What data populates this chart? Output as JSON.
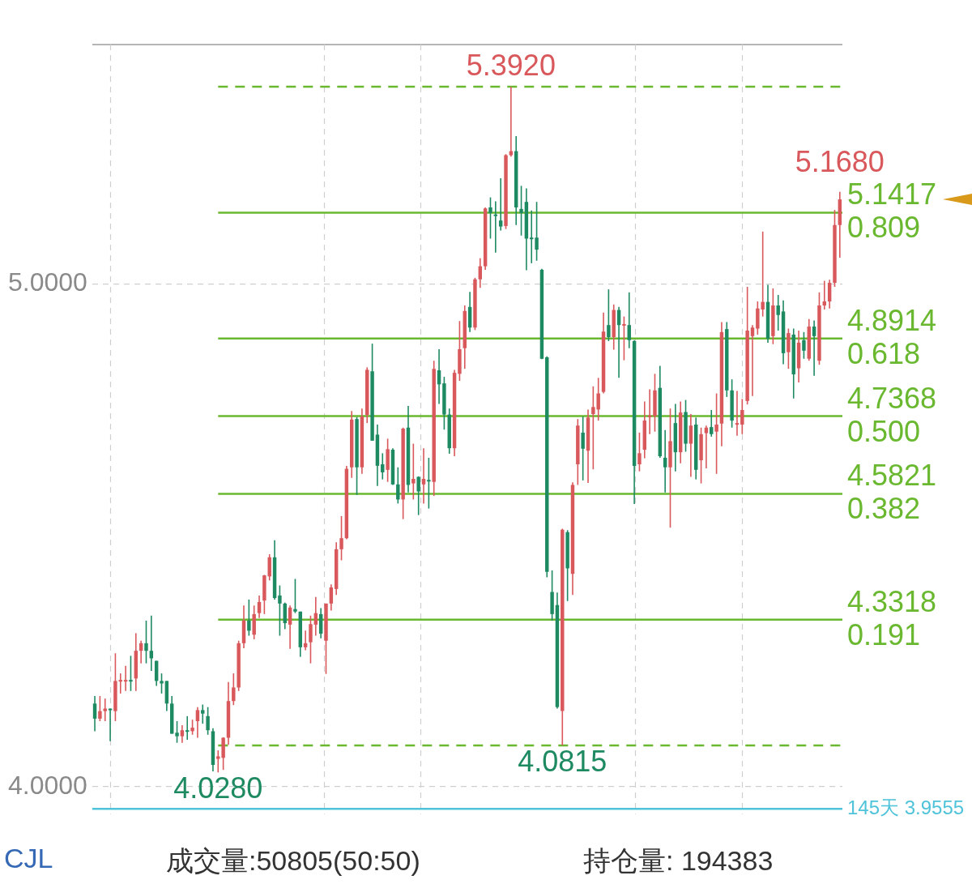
{
  "chart_data": {
    "type": "candlestick",
    "categories": [
      null,
      null,
      null,
      null,
      null,
      null,
      null,
      null,
      null,
      null,
      null,
      null,
      null,
      null,
      null,
      null,
      null,
      null,
      null,
      null,
      null,
      null,
      null,
      null,
      null,
      null,
      null,
      null,
      null,
      null,
      null,
      null,
      null,
      null,
      null,
      null,
      null,
      null,
      null,
      null,
      null,
      null,
      null,
      null,
      null,
      null,
      null,
      null,
      null,
      null,
      null,
      null,
      null,
      null,
      null,
      null,
      null,
      null,
      null,
      null,
      null,
      null,
      null,
      null,
      null,
      null,
      null,
      null,
      null,
      null,
      null,
      null,
      null,
      null,
      null,
      null,
      null,
      null,
      null,
      null,
      null,
      null,
      null,
      null,
      null,
      null,
      null,
      null,
      null,
      null,
      null,
      null,
      null,
      null,
      null,
      null,
      null,
      null,
      null,
      null,
      null,
      null,
      null,
      null,
      null,
      null,
      null,
      null,
      null,
      null,
      null,
      null,
      null,
      null,
      null,
      null,
      null,
      null,
      null,
      null,
      null,
      null,
      null,
      null,
      null,
      null,
      null,
      null,
      null,
      null,
      null,
      null,
      null,
      null,
      null,
      null,
      null,
      null,
      null,
      null,
      null,
      null,
      null,
      null,
      null,
      null
    ],
    "ohlc": [
      [
        4.165,
        4.18,
        4.11,
        4.135
      ],
      [
        4.135,
        4.18,
        4.13,
        4.15
      ],
      [
        4.15,
        4.175,
        4.13,
        4.155
      ],
      [
        4.155,
        4.155,
        4.09,
        4.152
      ],
      [
        4.15,
        4.265,
        4.13,
        4.21
      ],
      [
        4.21,
        4.225,
        4.185,
        4.212
      ],
      [
        4.21,
        4.24,
        4.19,
        4.212
      ],
      [
        4.212,
        4.26,
        4.19,
        4.21
      ],
      [
        4.215,
        4.305,
        4.19,
        4.27
      ],
      [
        4.27,
        4.29,
        4.245,
        4.285
      ],
      [
        4.285,
        4.33,
        4.245,
        4.27
      ],
      [
        4.27,
        4.34,
        4.23,
        4.255
      ],
      [
        4.25,
        4.25,
        4.2,
        4.21
      ],
      [
        4.21,
        4.225,
        4.185,
        4.205
      ],
      [
        4.21,
        4.21,
        4.15,
        4.165
      ],
      [
        4.165,
        4.18,
        4.105,
        4.105
      ],
      [
        4.107,
        4.13,
        4.087,
        4.1
      ],
      [
        4.1,
        4.122,
        4.087,
        4.112
      ],
      [
        4.112,
        4.14,
        4.093,
        4.11
      ],
      [
        4.11,
        4.133,
        4.103,
        4.117
      ],
      [
        4.13,
        4.158,
        4.097,
        4.152
      ],
      [
        4.152,
        4.163,
        4.125,
        4.145
      ],
      [
        4.14,
        4.158,
        4.103,
        4.112
      ],
      [
        4.11,
        4.116,
        4.03,
        4.043
      ],
      [
        4.055,
        4.072,
        4.028,
        4.06
      ],
      [
        4.057,
        4.098,
        4.033,
        4.097
      ],
      [
        4.097,
        4.208,
        4.083,
        4.17
      ],
      [
        4.17,
        4.225,
        4.162,
        4.197
      ],
      [
        4.197,
        4.29,
        4.19,
        4.285
      ],
      [
        4.285,
        4.36,
        4.275,
        4.33
      ],
      [
        4.33,
        4.372,
        4.3,
        4.31
      ],
      [
        4.302,
        4.36,
        4.293,
        4.343
      ],
      [
        4.345,
        4.38,
        4.335,
        4.367
      ],
      [
        4.37,
        4.421,
        4.343,
        4.42
      ],
      [
        4.418,
        4.462,
        4.41,
        4.456
      ],
      [
        4.456,
        4.49,
        4.372,
        4.375
      ],
      [
        4.38,
        4.4,
        4.3,
        4.364
      ],
      [
        4.364,
        4.366,
        4.313,
        4.325
      ],
      [
        4.322,
        4.36,
        4.274,
        4.356
      ],
      [
        4.353,
        4.413,
        4.345,
        4.348
      ],
      [
        4.348,
        4.348,
        4.258,
        4.277
      ],
      [
        4.277,
        4.31,
        4.271,
        4.285
      ],
      [
        4.287,
        4.34,
        4.245,
        4.323
      ],
      [
        4.322,
        4.377,
        4.3,
        4.345
      ],
      [
        4.343,
        4.355,
        4.295,
        4.304
      ],
      [
        4.29,
        4.364,
        4.224,
        4.364
      ],
      [
        4.364,
        4.402,
        4.35,
        4.396
      ],
      [
        4.393,
        4.486,
        4.381,
        4.472
      ],
      [
        4.472,
        4.538,
        4.45,
        4.494
      ],
      [
        4.494,
        4.638,
        4.492,
        4.632
      ],
      [
        4.635,
        4.747,
        4.614,
        4.73
      ],
      [
        4.731,
        4.735,
        4.58,
        4.635
      ],
      [
        4.635,
        4.752,
        4.622,
        4.736
      ],
      [
        4.739,
        4.834,
        4.723,
        4.829
      ],
      [
        4.826,
        4.881,
        4.688,
        4.688
      ],
      [
        4.7,
        4.72,
        4.598,
        4.638
      ],
      [
        4.641,
        4.663,
        4.611,
        4.625
      ],
      [
        4.63,
        4.692,
        4.606,
        4.671
      ],
      [
        4.67,
        4.673,
        4.6,
        4.601
      ],
      [
        4.601,
        4.635,
        4.563,
        4.571
      ],
      [
        4.571,
        4.714,
        4.532,
        4.712
      ],
      [
        4.714,
        4.757,
        4.585,
        4.6
      ],
      [
        4.603,
        4.682,
        4.571,
        4.612
      ],
      [
        4.616,
        4.617,
        4.54,
        4.587
      ],
      [
        4.601,
        4.673,
        4.563,
        4.612
      ],
      [
        4.61,
        4.654,
        4.553,
        4.608
      ],
      [
        4.606,
        4.847,
        4.578,
        4.831
      ],
      [
        4.828,
        4.87,
        4.761,
        4.8
      ],
      [
        4.802,
        4.815,
        4.71,
        4.74
      ],
      [
        4.74,
        4.752,
        4.662,
        4.673
      ],
      [
        4.673,
        4.829,
        4.657,
        4.823
      ],
      [
        4.821,
        4.926,
        4.807,
        4.87
      ],
      [
        4.872,
        4.957,
        4.831,
        4.946
      ],
      [
        4.954,
        4.984,
        4.904,
        4.913
      ],
      [
        4.913,
        5.012,
        4.908,
        5.009
      ],
      [
        5.009,
        5.051,
        4.992,
        5.035
      ],
      [
        5.035,
        5.152,
        5.028,
        5.15
      ],
      [
        5.152,
        5.172,
        5.09,
        5.141
      ],
      [
        5.138,
        5.164,
        5.062,
        5.136
      ],
      [
        5.126,
        5.21,
        5.106,
        5.114
      ],
      [
        5.115,
        5.258,
        5.109,
        5.256
      ],
      [
        5.256,
        5.392,
        5.253,
        5.264
      ],
      [
        5.264,
        5.294,
        5.117,
        5.152
      ],
      [
        5.149,
        5.195,
        5.096,
        5.141
      ],
      [
        5.163,
        5.19,
        5.027,
        5.09
      ],
      [
        5.092,
        5.146,
        5.041,
        5.09
      ],
      [
        5.092,
        5.163,
        5.046,
        5.068
      ],
      [
        5.028,
        5.03,
        4.85,
        4.851
      ],
      [
        4.854,
        4.856,
        4.416,
        4.427
      ],
      [
        4.387,
        4.43,
        4.33,
        4.343
      ],
      [
        4.361,
        4.386,
        4.155,
        4.158
      ],
      [
        4.15,
        4.513,
        4.0815,
        4.511
      ],
      [
        4.506,
        4.51,
        4.369,
        4.434
      ],
      [
        4.423,
        4.605,
        4.381,
        4.6
      ],
      [
        4.641,
        4.731,
        4.6,
        4.718
      ],
      [
        4.704,
        4.736,
        4.609,
        4.672
      ],
      [
        4.668,
        4.75,
        4.604,
        4.734
      ],
      [
        4.741,
        4.796,
        4.631,
        4.755
      ],
      [
        4.75,
        4.813,
        4.728,
        4.782
      ],
      [
        4.785,
        4.943,
        4.782,
        4.905
      ],
      [
        4.918,
        4.989,
        4.886,
        4.894
      ],
      [
        4.894,
        4.959,
        4.869,
        4.948
      ],
      [
        4.948,
        4.954,
        4.813,
        4.918
      ],
      [
        4.919,
        4.935,
        4.848,
        4.92
      ],
      [
        4.918,
        4.983,
        4.872,
        4.888
      ],
      [
        4.886,
        4.888,
        4.562,
        4.638
      ],
      [
        4.641,
        4.704,
        4.627,
        4.663
      ],
      [
        4.67,
        4.766,
        4.653,
        4.728
      ],
      [
        4.737,
        4.79,
        4.701,
        4.738
      ],
      [
        4.737,
        4.821,
        4.706,
        4.788
      ],
      [
        4.793,
        4.837,
        4.654,
        4.657
      ],
      [
        4.654,
        4.709,
        4.585,
        4.635
      ],
      [
        4.635,
        4.752,
        4.515,
        4.687
      ],
      [
        4.723,
        4.761,
        4.627,
        4.665
      ],
      [
        4.665,
        4.766,
        4.643,
        4.744
      ],
      [
        4.745,
        4.769,
        4.666,
        4.682
      ],
      [
        4.682,
        4.741,
        4.616,
        4.718
      ],
      [
        4.72,
        4.734,
        4.611,
        4.63
      ],
      [
        4.649,
        4.714,
        4.603,
        4.701
      ],
      [
        4.703,
        4.718,
        4.633,
        4.714
      ],
      [
        4.715,
        4.749,
        4.696,
        4.701
      ],
      [
        4.706,
        4.782,
        4.622,
        4.72
      ],
      [
        4.722,
        4.924,
        4.677,
        4.904
      ],
      [
        4.91,
        4.924,
        4.775,
        4.788
      ],
      [
        4.788,
        4.81,
        4.714,
        4.728
      ],
      [
        4.722,
        4.787,
        4.698,
        4.723
      ],
      [
        4.72,
        4.771,
        4.701,
        4.749
      ],
      [
        4.767,
        4.994,
        4.76,
        4.907
      ],
      [
        4.896,
        4.918,
        4.777,
        4.913
      ],
      [
        4.911,
        4.965,
        4.899,
        4.951
      ],
      [
        4.949,
        5.104,
        4.935,
        4.964
      ],
      [
        4.964,
        4.998,
        4.883,
        4.891
      ],
      [
        4.896,
        4.991,
        4.88,
        4.957
      ],
      [
        4.957,
        4.978,
        4.907,
        4.938
      ],
      [
        4.945,
        4.967,
        4.84,
        4.862
      ],
      [
        4.864,
        4.911,
        4.831,
        4.902
      ],
      [
        4.899,
        4.911,
        4.772,
        4.82
      ],
      [
        4.832,
        4.907,
        4.804,
        4.883
      ],
      [
        4.888,
        4.904,
        4.851,
        4.867
      ],
      [
        4.851,
        4.93,
        4.847,
        4.915
      ],
      [
        4.915,
        4.927,
        4.817,
        4.896
      ],
      [
        4.847,
        4.983,
        4.839,
        4.957
      ],
      [
        4.957,
        5.006,
        4.949,
        4.965
      ],
      [
        4.965,
        5.008,
        4.951,
        5.002
      ],
      [
        5.002,
        5.147,
        4.994,
        5.117
      ],
      [
        5.117,
        5.183,
        5.052,
        5.168
      ]
    ],
    "colors": [
      "#1e8a62",
      "#d9585b",
      "#d9585b",
      "#1e8a62",
      "#d9585b",
      "#d9585b",
      "#d9585b",
      "#1e8a62",
      "#d9585b",
      "#d9585b",
      "#1e8a62",
      "#1e8a62",
      "#1e8a62",
      "#1e8a62",
      "#1e8a62",
      "#1e8a62",
      "#1e8a62",
      "#d9585b",
      "#1e8a62",
      "#d9585b",
      "#d9585b",
      "#1e8a62",
      "#1e8a62",
      "#1e8a62",
      "#d9585b",
      "#d9585b",
      "#d9585b",
      "#d9585b",
      "#d9585b",
      "#d9585b",
      "#1e8a62",
      "#d9585b",
      "#d9585b",
      "#d9585b",
      "#d9585b",
      "#1e8a62",
      "#1e8a62",
      "#1e8a62",
      "#d9585b",
      "#1e8a62",
      "#1e8a62",
      "#d9585b",
      "#d9585b",
      "#d9585b",
      "#1e8a62",
      "#d9585b",
      "#d9585b",
      "#d9585b",
      "#d9585b",
      "#d9585b",
      "#d9585b",
      "#1e8a62",
      "#d9585b",
      "#d9585b",
      "#1e8a62",
      "#1e8a62",
      "#1e8a62",
      "#d9585b",
      "#1e8a62",
      "#1e8a62",
      "#d9585b",
      "#1e8a62",
      "#d9585b",
      "#1e8a62",
      "#d9585b",
      "#1e8a62",
      "#d9585b",
      "#1e8a62",
      "#1e8a62",
      "#1e8a62",
      "#d9585b",
      "#d9585b",
      "#d9585b",
      "#1e8a62",
      "#d9585b",
      "#d9585b",
      "#d9585b",
      "#1e8a62",
      "#1e8a62",
      "#1e8a62",
      "#d9585b",
      "#d9585b",
      "#1e8a62",
      "#1e8a62",
      "#1e8a62",
      "#1e8a62",
      "#1e8a62",
      "#1e8a62",
      "#1e8a62",
      "#1e8a62",
      "#1e8a62",
      "#d9585b",
      "#1e8a62",
      "#d9585b",
      "#d9585b",
      "#1e8a62",
      "#d9585b",
      "#d9585b",
      "#d9585b",
      "#d9585b",
      "#1e8a62",
      "#d9585b",
      "#1e8a62",
      "#d9585b",
      "#1e8a62",
      "#1e8a62",
      "#d9585b",
      "#d9585b",
      "#d9585b",
      "#d9585b",
      "#1e8a62",
      "#1e8a62",
      "#d9585b",
      "#1e8a62",
      "#d9585b",
      "#1e8a62",
      "#d9585b",
      "#1e8a62",
      "#d9585b",
      "#d9585b",
      "#1e8a62",
      "#d9585b",
      "#d9585b",
      "#1e8a62",
      "#1e8a62",
      "#d9585b",
      "#d9585b",
      "#d9585b",
      "#d9585b",
      "#d9585b",
      "#d9585b",
      "#1e8a62",
      "#d9585b",
      "#1e8a62",
      "#1e8a62",
      "#d9585b",
      "#1e8a62",
      "#d9585b",
      "#1e8a62",
      "#d9585b",
      "#1e8a62",
      "#d9585b",
      "#d9585b",
      "#d9585b",
      "#d9585b",
      "#d9585b"
    ],
    "ylim": [
      3.945,
      5.476
    ],
    "yticks": [
      {
        "value": 4,
        "label": "4.0000"
      },
      {
        "value": 5,
        "label": "5.0000"
      }
    ],
    "grid": "y",
    "tick_labels": "y",
    "ref_lines": [
      {
        "axis": "y",
        "value": 5.392,
        "color": "#6ab82f",
        "line_style": "dashed"
      },
      {
        "axis": "y",
        "value": 5.1417,
        "label": "5.1417\n0.809",
        "color": "#6ab82f"
      },
      {
        "axis": "y",
        "value": 4.8914,
        "label": "4.8914\n0.618",
        "color": "#6ab82f"
      },
      {
        "axis": "y",
        "value": 4.7368,
        "label": "4.7368\n0.500",
        "color": "#6ab82f"
      },
      {
        "axis": "y",
        "value": 4.5821,
        "label": "4.5821\n0.382",
        "color": "#6ab82f"
      },
      {
        "axis": "y",
        "value": 4.3318,
        "label": "4.3318\n0.191",
        "color": "#6ab82f"
      },
      {
        "axis": "y",
        "value": 4.0815,
        "color": "#6ab82f",
        "line_style": "dashed"
      },
      {
        "axis": "y",
        "value": 3.9555,
        "label": "145天 3.9555",
        "color": "#4fc3d9"
      }
    ],
    "annotations": [
      {
        "text": "5.3920",
        "y": 5.392
      },
      {
        "text": "4.0815",
        "y": 4.0815
      },
      {
        "text": "4.0280",
        "y": 4.028
      },
      {
        "text": "5.1680",
        "y": 5.168
      },
      "CJL",
      "成交量:50805(50:50)",
      "持仓量: 194383"
    ]
  }
}
